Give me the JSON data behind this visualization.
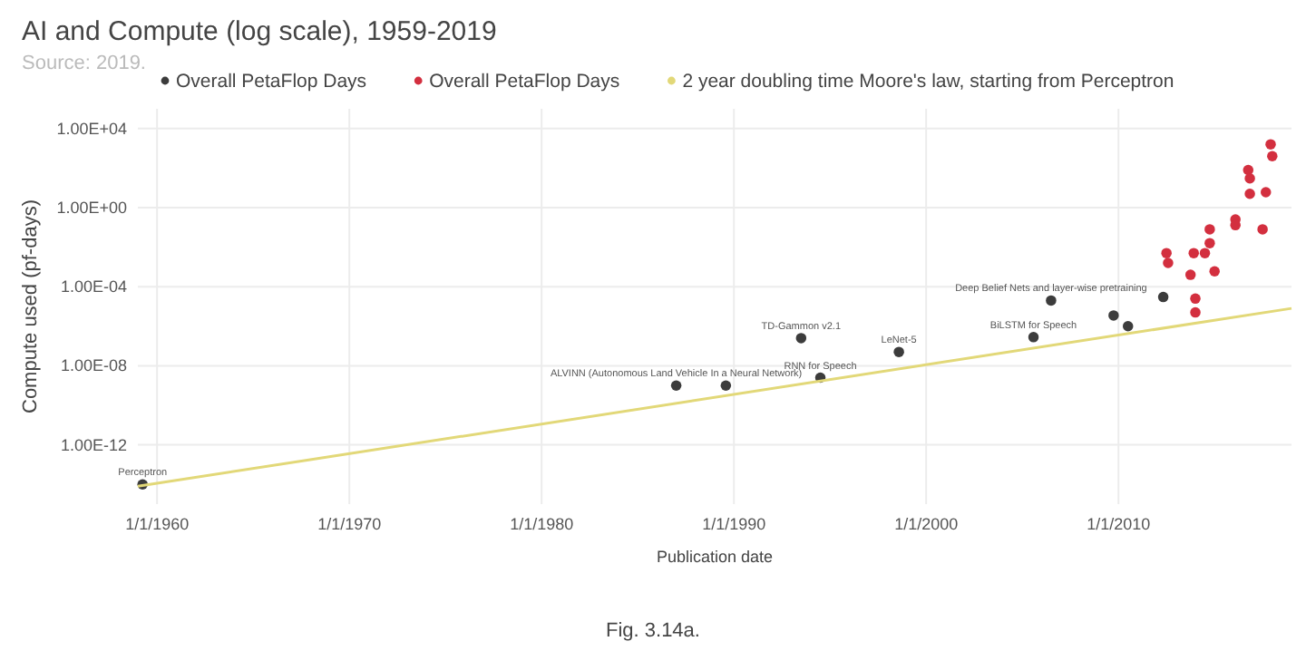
{
  "chart_data": {
    "type": "scatter",
    "title": "AI and Compute (log scale), 1959-2019",
    "subtitle": "Source: 2019.",
    "xlabel": "Publication date",
    "ylabel": "Compute used (pf-days)",
    "log": "y",
    "grid": true,
    "legend": "top",
    "xlim": [
      "1959-01",
      "2019-01"
    ],
    "ylim": [
      1e-15,
      100000.0
    ],
    "xticks": [
      {
        "value": "1960-01-01",
        "label": "1/1/1960"
      },
      {
        "value": "1970-01-01",
        "label": "1/1/1970"
      },
      {
        "value": "1980-01-01",
        "label": "1/1/1980"
      },
      {
        "value": "1990-01-01",
        "label": "1/1/1990"
      },
      {
        "value": "2000-01-01",
        "label": "1/1/2000"
      },
      {
        "value": "2010-01-01",
        "label": "1/1/2010"
      }
    ],
    "yticks": [
      {
        "value": 1e-12,
        "label": "1.00E-12"
      },
      {
        "value": 1e-08,
        "label": "1.00E-08"
      },
      {
        "value": 0.0001,
        "label": "1.00E-04"
      },
      {
        "value": 1,
        "label": "1.00E+00"
      },
      {
        "value": 10000.0,
        "label": "1.00E+04"
      }
    ],
    "series": [
      {
        "name": "Overall PetaFlop Days",
        "marker": "circle",
        "color": "#3c3c3c",
        "x": [
          "1959-04",
          "1987-01",
          "1989-08",
          "1993-07",
          "1994-07",
          "1998-08",
          "2005-08",
          "2006-07",
          "2009-10",
          "2010-07",
          "2012-05"
        ],
        "values": [
          1e-14,
          1e-09,
          1e-09,
          2.5e-07,
          2.5e-09,
          5e-08,
          2.8e-07,
          2e-05,
          3.5e-06,
          1e-06,
          3e-05
        ]
      },
      {
        "name": "Overall PetaFlop Days",
        "marker": "circle",
        "color": "#d32f3f",
        "x": [
          "2017-12",
          "2018-01",
          "2016-10",
          "2016-11",
          "2017-09",
          "2016-11",
          "2016-02",
          "2016-02",
          "2014-10",
          "2017-07",
          "2014-10",
          "2012-07",
          "2012-08",
          "2013-12",
          "2014-07",
          "2013-10",
          "2015-01",
          "2014-01",
          "2014-01"
        ],
        "values": [
          1600,
          400,
          80,
          30,
          6,
          5,
          0.25,
          0.13,
          0.08,
          0.08,
          0.016,
          0.005,
          0.0016,
          0.005,
          0.005,
          0.0004,
          0.0006,
          2.5e-05,
          5e-06
        ]
      },
      {
        "name": "2 year doubling time Moore's law, starting from Perceptron",
        "type": "line",
        "line_style": "solid",
        "color": "#e2d878",
        "x": [
          "1959-01",
          "2019-01"
        ],
        "values": [
          8e-15,
          8e-06
        ]
      }
    ],
    "annotations": [
      {
        "text": "Perceptron",
        "x": "1959-04",
        "y": 1e-14
      },
      {
        "text": "ALVINN (Autonomous Land Vehicle In a Neural Network)",
        "x": "1987-01",
        "y": 1e-09
      },
      {
        "text": "TD-Gammon v2.1",
        "x": "1993-07",
        "y": 2.5e-07
      },
      {
        "text": "RNN for Speech",
        "x": "1994-07",
        "y": 2.5e-09
      },
      {
        "text": "LeNet-5",
        "x": "1998-08",
        "y": 5e-08
      },
      {
        "text": "BiLSTM for Speech",
        "x": "2005-08",
        "y": 2.8e-07
      },
      {
        "text": "Deep Belief Nets and layer-wise pretraining",
        "x": "2006-07",
        "y": 2e-05
      },
      "Fig. 3.14a."
    ]
  }
}
